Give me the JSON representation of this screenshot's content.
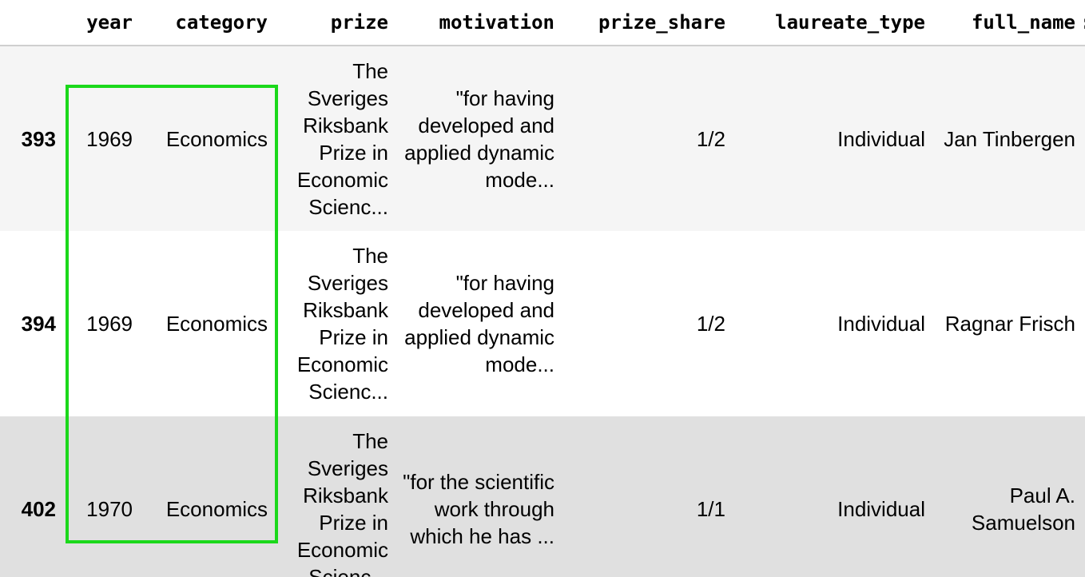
{
  "table": {
    "columns": [
      "year",
      "category",
      "prize",
      "motivation",
      "prize_share",
      "laureate_type",
      "full_name"
    ],
    "overflow_column_glyph": ":",
    "rows": [
      {
        "index": "393",
        "year": "1969",
        "category": "Economics",
        "prize": "The Sveriges Riksbank Prize in Economic Scienc...",
        "motivation": "\"for having developed and applied dynamic mode...",
        "prize_share": "1/2",
        "laureate_type": "Individual",
        "full_name": "Jan Tinbergen"
      },
      {
        "index": "394",
        "year": "1969",
        "category": "Economics",
        "prize": "The Sveriges Riksbank Prize in Economic Scienc...",
        "motivation": "\"for having developed and applied dynamic mode...",
        "prize_share": "1/2",
        "laureate_type": "Individual",
        "full_name": "Ragnar Frisch"
      },
      {
        "index": "402",
        "year": "1970",
        "category": "Economics",
        "prize": "The Sveriges Riksbank Prize in Economic Scienc...",
        "motivation": "\"for the scientific work through which he has ...",
        "prize_share": "1/1",
        "laureate_type": "Individual",
        "full_name": "Paul A. Samuelson"
      }
    ]
  },
  "highlight": {
    "color": "#1bd81b"
  }
}
